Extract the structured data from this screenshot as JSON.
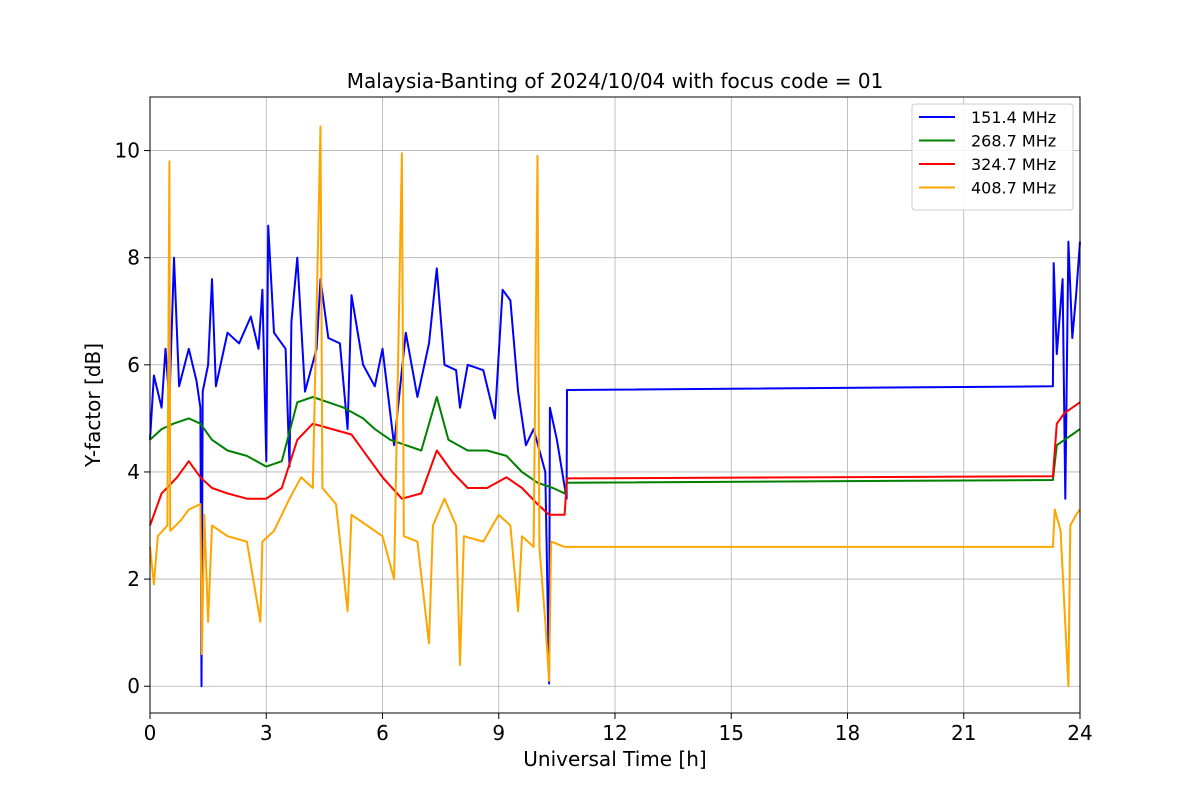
{
  "chart_data": {
    "type": "line",
    "title": "Malaysia-Banting of 2024/10/04 with focus code = 01",
    "xlabel": "Universal Time [h]",
    "ylabel": "Y-factor [dB]",
    "xlim": [
      0,
      24
    ],
    "ylim": [
      -0.5,
      11
    ],
    "xticks": [
      0,
      3,
      6,
      9,
      12,
      15,
      18,
      21,
      24
    ],
    "yticks": [
      0,
      2,
      4,
      6,
      8,
      10
    ],
    "grid": true,
    "legend_position": "top-right",
    "series": [
      {
        "name": "151.4 MHz",
        "color": "#0000ff",
        "points": [
          [
            0.0,
            4.6
          ],
          [
            0.1,
            5.8
          ],
          [
            0.3,
            5.2
          ],
          [
            0.4,
            6.3
          ],
          [
            0.5,
            5.3
          ],
          [
            0.62,
            8.0
          ],
          [
            0.75,
            5.6
          ],
          [
            1.0,
            6.3
          ],
          [
            1.2,
            5.7
          ],
          [
            1.3,
            5.2
          ],
          [
            1.33,
            0.0
          ],
          [
            1.36,
            5.5
          ],
          [
            1.5,
            6.0
          ],
          [
            1.6,
            7.6
          ],
          [
            1.7,
            5.6
          ],
          [
            2.0,
            6.6
          ],
          [
            2.3,
            6.4
          ],
          [
            2.6,
            6.9
          ],
          [
            2.8,
            6.3
          ],
          [
            2.9,
            7.4
          ],
          [
            3.0,
            4.2
          ],
          [
            3.05,
            8.6
          ],
          [
            3.2,
            6.6
          ],
          [
            3.5,
            6.3
          ],
          [
            3.6,
            4.1
          ],
          [
            3.65,
            6.8
          ],
          [
            3.8,
            8.0
          ],
          [
            4.0,
            5.5
          ],
          [
            4.3,
            6.3
          ],
          [
            4.4,
            7.6
          ],
          [
            4.6,
            6.5
          ],
          [
            4.9,
            6.4
          ],
          [
            5.1,
            4.8
          ],
          [
            5.2,
            7.3
          ],
          [
            5.5,
            6.0
          ],
          [
            5.8,
            5.6
          ],
          [
            6.0,
            6.3
          ],
          [
            6.3,
            4.5
          ],
          [
            6.6,
            6.6
          ],
          [
            6.9,
            5.4
          ],
          [
            7.2,
            6.4
          ],
          [
            7.4,
            7.8
          ],
          [
            7.6,
            6.0
          ],
          [
            7.9,
            5.9
          ],
          [
            8.0,
            5.2
          ],
          [
            8.2,
            6.0
          ],
          [
            8.6,
            5.9
          ],
          [
            8.9,
            5.0
          ],
          [
            9.1,
            7.4
          ],
          [
            9.3,
            7.2
          ],
          [
            9.5,
            5.5
          ],
          [
            9.7,
            4.5
          ],
          [
            9.9,
            4.8
          ],
          [
            10.2,
            4.0
          ],
          [
            10.3,
            0.05
          ],
          [
            10.32,
            5.2
          ],
          [
            10.5,
            4.6
          ],
          [
            10.75,
            3.5
          ],
          [
            10.76,
            5.53
          ],
          [
            23.3,
            5.6
          ],
          [
            23.32,
            7.9
          ],
          [
            23.4,
            6.2
          ],
          [
            23.55,
            7.6
          ],
          [
            23.62,
            3.5
          ],
          [
            23.7,
            8.3
          ],
          [
            23.8,
            6.5
          ],
          [
            23.9,
            7.3
          ],
          [
            24.0,
            8.3
          ]
        ]
      },
      {
        "name": "268.7 MHz",
        "color": "#008000",
        "points": [
          [
            0.0,
            4.6
          ],
          [
            0.3,
            4.8
          ],
          [
            0.6,
            4.9
          ],
          [
            1.0,
            5.0
          ],
          [
            1.3,
            4.9
          ],
          [
            1.6,
            4.6
          ],
          [
            2.0,
            4.4
          ],
          [
            2.5,
            4.3
          ],
          [
            3.0,
            4.1
          ],
          [
            3.4,
            4.2
          ],
          [
            3.8,
            5.3
          ],
          [
            4.2,
            5.4
          ],
          [
            4.6,
            5.3
          ],
          [
            5.0,
            5.2
          ],
          [
            5.5,
            5.0
          ],
          [
            5.8,
            4.8
          ],
          [
            6.2,
            4.6
          ],
          [
            6.6,
            4.5
          ],
          [
            7.0,
            4.4
          ],
          [
            7.4,
            5.4
          ],
          [
            7.7,
            4.6
          ],
          [
            8.2,
            4.4
          ],
          [
            8.7,
            4.4
          ],
          [
            9.2,
            4.3
          ],
          [
            9.6,
            4.0
          ],
          [
            10.0,
            3.8
          ],
          [
            10.4,
            3.7
          ],
          [
            10.7,
            3.6
          ],
          [
            10.76,
            3.8
          ],
          [
            23.3,
            3.85
          ],
          [
            23.4,
            4.5
          ],
          [
            23.6,
            4.6
          ],
          [
            23.8,
            4.7
          ],
          [
            24.0,
            4.8
          ]
        ]
      },
      {
        "name": "324.7 MHz",
        "color": "#ff0000",
        "points": [
          [
            0.0,
            3.0
          ],
          [
            0.3,
            3.6
          ],
          [
            0.7,
            3.9
          ],
          [
            1.0,
            4.2
          ],
          [
            1.3,
            3.9
          ],
          [
            1.6,
            3.7
          ],
          [
            2.0,
            3.6
          ],
          [
            2.5,
            3.5
          ],
          [
            3.0,
            3.5
          ],
          [
            3.4,
            3.7
          ],
          [
            3.8,
            4.6
          ],
          [
            4.2,
            4.9
          ],
          [
            4.7,
            4.8
          ],
          [
            5.2,
            4.7
          ],
          [
            5.6,
            4.3
          ],
          [
            6.0,
            3.9
          ],
          [
            6.5,
            3.5
          ],
          [
            7.0,
            3.6
          ],
          [
            7.4,
            4.4
          ],
          [
            7.8,
            4.0
          ],
          [
            8.2,
            3.7
          ],
          [
            8.7,
            3.7
          ],
          [
            9.2,
            3.9
          ],
          [
            9.6,
            3.7
          ],
          [
            10.0,
            3.4
          ],
          [
            10.3,
            3.2
          ],
          [
            10.7,
            3.2
          ],
          [
            10.76,
            3.88
          ],
          [
            23.3,
            3.92
          ],
          [
            23.4,
            4.9
          ],
          [
            23.6,
            5.1
          ],
          [
            23.8,
            5.2
          ],
          [
            24.0,
            5.3
          ]
        ]
      },
      {
        "name": "408.7 MHz",
        "color": "#ffa500",
        "points": [
          [
            0.0,
            2.6
          ],
          [
            0.1,
            1.9
          ],
          [
            0.2,
            2.8
          ],
          [
            0.45,
            3.0
          ],
          [
            0.5,
            9.8
          ],
          [
            0.52,
            2.9
          ],
          [
            0.8,
            3.1
          ],
          [
            1.0,
            3.3
          ],
          [
            1.3,
            3.4
          ],
          [
            1.34,
            0.6
          ],
          [
            1.4,
            3.2
          ],
          [
            1.5,
            1.2
          ],
          [
            1.6,
            3.0
          ],
          [
            2.0,
            2.8
          ],
          [
            2.5,
            2.7
          ],
          [
            2.85,
            1.2
          ],
          [
            2.9,
            2.7
          ],
          [
            3.2,
            2.9
          ],
          [
            3.6,
            3.5
          ],
          [
            3.9,
            3.9
          ],
          [
            4.2,
            3.7
          ],
          [
            4.4,
            10.45
          ],
          [
            4.45,
            3.7
          ],
          [
            4.8,
            3.4
          ],
          [
            5.1,
            1.4
          ],
          [
            5.2,
            3.2
          ],
          [
            5.6,
            3.0
          ],
          [
            6.0,
            2.8
          ],
          [
            6.3,
            2.0
          ],
          [
            6.5,
            9.95
          ],
          [
            6.55,
            2.8
          ],
          [
            6.9,
            2.7
          ],
          [
            7.2,
            0.8
          ],
          [
            7.3,
            3.0
          ],
          [
            7.6,
            3.5
          ],
          [
            7.9,
            3.0
          ],
          [
            8.0,
            0.4
          ],
          [
            8.1,
            2.8
          ],
          [
            8.6,
            2.7
          ],
          [
            9.0,
            3.2
          ],
          [
            9.3,
            3.0
          ],
          [
            9.5,
            1.4
          ],
          [
            9.6,
            2.8
          ],
          [
            9.9,
            2.6
          ],
          [
            10.0,
            9.9
          ],
          [
            10.05,
            2.6
          ],
          [
            10.2,
            1.2
          ],
          [
            10.3,
            0.1
          ],
          [
            10.35,
            2.7
          ],
          [
            10.7,
            2.6
          ],
          [
            10.76,
            2.6
          ],
          [
            23.3,
            2.6
          ],
          [
            23.35,
            3.3
          ],
          [
            23.5,
            2.9
          ],
          [
            23.7,
            0.0
          ],
          [
            23.75,
            3.0
          ],
          [
            23.9,
            3.2
          ],
          [
            24.0,
            3.3
          ]
        ]
      }
    ]
  }
}
